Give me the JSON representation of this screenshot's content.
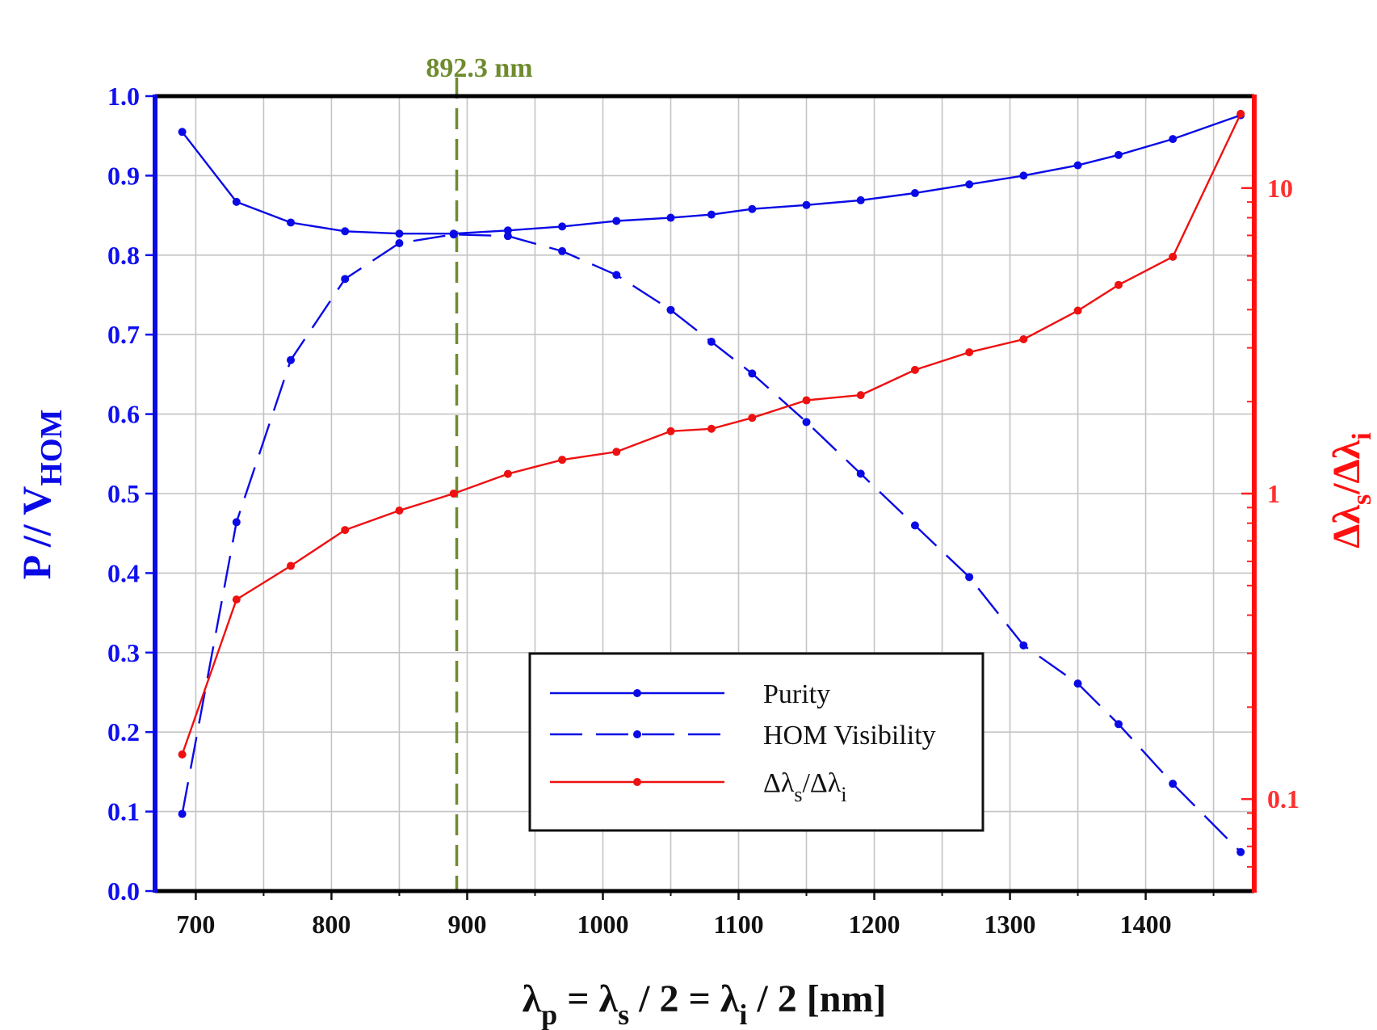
{
  "chart_data": {
    "type": "line",
    "x_axis": {
      "label_main": "λ",
      "label_sub_p": "p",
      "label_mid1": " = λ",
      "label_sub_s": "s",
      "label_mid2": " / 2 = λ",
      "label_sub_i": "i",
      "label_end": " / 2 [nm]",
      "range": [
        670,
        1480
      ],
      "ticks": [
        700,
        800,
        900,
        1000,
        1100,
        1200,
        1300,
        1400
      ],
      "tick_labels": [
        "700",
        "800",
        "900",
        "1000",
        "1100",
        "1200",
        "1300",
        "1400"
      ]
    },
    "y_left": {
      "label_main": "P // V",
      "label_sub": "HOM",
      "range": [
        0,
        1
      ],
      "ticks": [
        0,
        0.1,
        0.2,
        0.3,
        0.4,
        0.5,
        0.6,
        0.7,
        0.8,
        0.9,
        1.0
      ],
      "tick_labels": [
        "0.0",
        "0.1",
        "0.2",
        "0.3",
        "0.4",
        "0.5",
        "0.6",
        "0.7",
        "0.8",
        "0.9",
        "1.0"
      ]
    },
    "y_right": {
      "scale": "log",
      "label_main": "Δλ",
      "label_sub_s": "s",
      "label_mid": "/Δλ",
      "label_sub_i": "i",
      "range": [
        0.05,
        20
      ],
      "major_ticks": [
        0.1,
        1,
        10
      ],
      "tick_labels": [
        "0.1",
        "1",
        "10"
      ]
    },
    "x": [
      690,
      730,
      770,
      810,
      850,
      890,
      930,
      970,
      1010,
      1050,
      1080,
      1110,
      1150,
      1190,
      1230,
      1270,
      1310,
      1350,
      1380,
      1420,
      1470
    ],
    "series": [
      {
        "name": "Purity",
        "axis": "left",
        "style": "solid",
        "color": "#0a0ae6",
        "values": [
          0.955,
          0.867,
          0.841,
          0.83,
          0.827,
          0.827,
          0.831,
          0.836,
          0.843,
          0.847,
          0.851,
          0.858,
          0.863,
          0.869,
          0.878,
          0.889,
          0.9,
          0.913,
          0.926,
          0.946,
          0.976
        ]
      },
      {
        "name": "HOM Visibility",
        "axis": "left",
        "style": "dashed",
        "color": "#0a0ae6",
        "values": [
          0.097,
          0.464,
          0.668,
          0.77,
          0.815,
          0.826,
          0.824,
          0.805,
          0.775,
          0.731,
          0.691,
          0.651,
          0.59,
          0.525,
          0.46,
          0.395,
          0.309,
          0.261,
          0.21,
          0.135,
          0.049
        ]
      },
      {
        "name_main": "Δλ",
        "name_sub_s": "s",
        "name_mid": "/Δλ",
        "name_sub_i": "i",
        "axis": "right",
        "style": "solid",
        "color": "#ee1111",
        "values": [
          0.14,
          0.45,
          0.58,
          0.76,
          0.88,
          1.0,
          1.16,
          1.29,
          1.37,
          1.6,
          1.63,
          1.77,
          2.02,
          2.1,
          2.54,
          2.9,
          3.2,
          3.97,
          4.82,
          5.96,
          17.5
        ]
      }
    ],
    "marker_line": {
      "x": 892.3,
      "label": "892.3 nm",
      "color": "#6f8b2f"
    },
    "legend": {
      "position": "bottom-center"
    },
    "grid": true
  }
}
